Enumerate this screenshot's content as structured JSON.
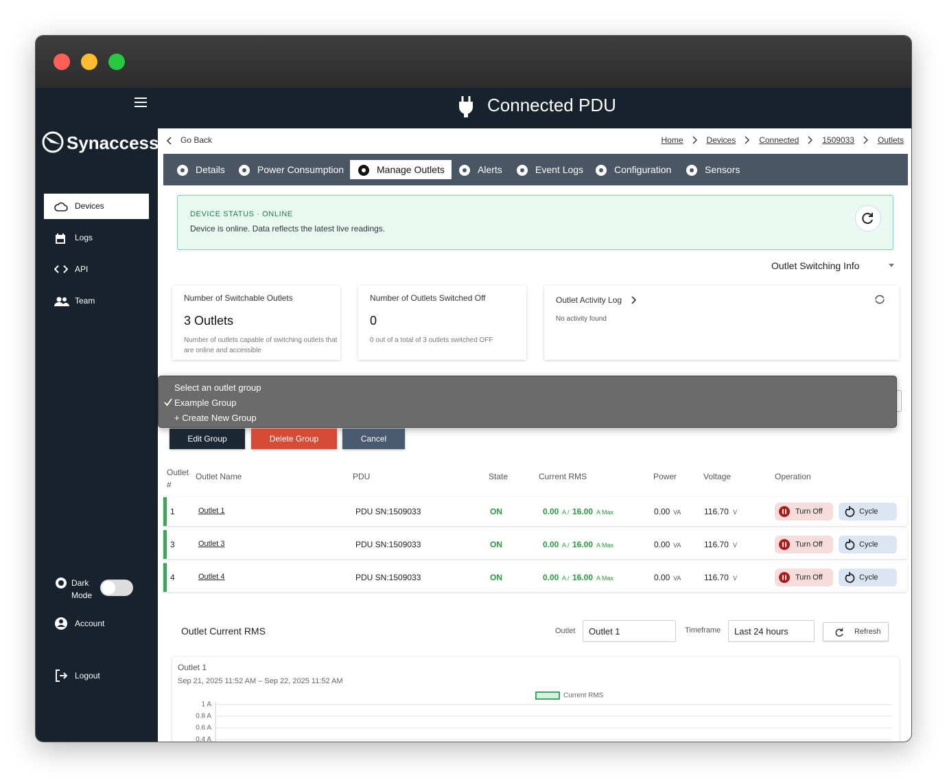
{
  "header": {
    "title": "Connected PDU"
  },
  "sidebar": {
    "brand": "Synaccess",
    "nav": [
      "Devices",
      "Logs",
      "API",
      "Team"
    ],
    "dark_mode": "Dark Mode",
    "account": "Account",
    "logout": "Logout"
  },
  "topbar": {
    "back": "Go Back",
    "breadcrumbs": [
      "Home",
      "Devices",
      "Connected",
      "1509033",
      "Outlets"
    ]
  },
  "tabs": [
    "Details",
    "Power Consumption",
    "Manage Outlets",
    "Alerts",
    "Event Logs",
    "Configuration",
    "Sensors"
  ],
  "status": {
    "label": "DEVICE STATUS · ONLINE",
    "message": "Device is online. Data reflects the latest live readings."
  },
  "switching_info": "Outlet Switching Info",
  "cards": [
    {
      "title": "Number of Switchable Outlets",
      "value": "3 Outlets",
      "note": "Number of outlets capable of switching outlets that are online and accessible"
    },
    {
      "title": "Number of Outlets Switched Off",
      "value": "0",
      "note": "0 out of a total of 3 outlets switched OFF"
    }
  ],
  "activity": {
    "title": "Outlet Activity Log",
    "empty": "No activity found"
  },
  "group_menu": {
    "options": [
      "Select an outlet group",
      "Example Group",
      "+ Create New Group"
    ]
  },
  "group_buttons": [
    "Edit Group",
    "Delete Group",
    "Cancel"
  ],
  "table": {
    "columns": [
      "Outlet #",
      "Outlet Name",
      "PDU",
      "State",
      "Current RMS",
      "Power",
      "Voltage",
      "Operation"
    ],
    "rows": [
      {
        "number": "1",
        "name": "Outlet 1",
        "pdu": "PDU SN:1509033",
        "state": "ON",
        "current": "0.00",
        "current_unit": "A /",
        "max": "16.00",
        "max_unit": "A Max",
        "power": "0.00",
        "power_unit": "VA",
        "voltage": "116.70",
        "voltage_unit": "V",
        "turn_off": "Turn Off",
        "cycle": "Cycle"
      },
      {
        "number": "3",
        "name": "Outlet 3",
        "pdu": "PDU SN:1509033",
        "state": "ON",
        "current": "0.00",
        "current_unit": "A /",
        "max": "16.00",
        "max_unit": "A Max",
        "power": "0.00",
        "power_unit": "VA",
        "voltage": "116.70",
        "voltage_unit": "V",
        "turn_off": "Turn Off",
        "cycle": "Cycle"
      },
      {
        "number": "4",
        "name": "Outlet 4",
        "pdu": "PDU SN:1509033",
        "state": "ON",
        "current": "0.00",
        "current_unit": "A /",
        "max": "16.00",
        "max_unit": "A Max",
        "power": "0.00",
        "power_unit": "VA",
        "voltage": "116.70",
        "voltage_unit": "V",
        "turn_off": "Turn Off",
        "cycle": "Cycle"
      }
    ]
  },
  "chart_section": {
    "title": "Outlet Current RMS",
    "outlet_label": "Outlet",
    "outlet_value": "Outlet 1",
    "timeframe_label": "Timeframe",
    "timeframe_value": "Last 24 hours",
    "refresh": "Refresh"
  },
  "chart_data": {
    "type": "line",
    "title": "Outlet 1",
    "subtitle": "Sep 21, 2025 11:52 AM – Sep 22, 2025 11:52 AM",
    "series": [
      {
        "name": "Current RMS",
        "color": "#3aa860",
        "values": []
      }
    ],
    "ylim": [
      0,
      1
    ],
    "yticks": [
      {
        "value": 1,
        "label": "1 A"
      },
      {
        "value": 0.8,
        "label": "0.8 A"
      },
      {
        "value": 0.6,
        "label": "0.6 A"
      },
      {
        "value": 0.4,
        "label": "0.4 A"
      }
    ],
    "grid": true
  }
}
